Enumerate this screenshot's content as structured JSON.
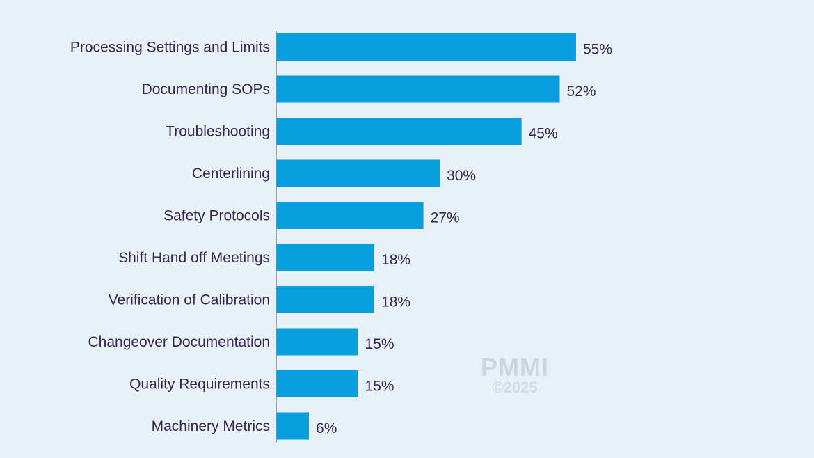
{
  "chart_data": {
    "type": "bar",
    "orientation": "horizontal",
    "categories": [
      "Processing Settings and Limits",
      "Documenting SOPs",
      "Troubleshooting",
      "Centerlining",
      "Safety Protocols",
      "Shift Hand off Meetings",
      "Verification of Calibration",
      "Changeover Documentation",
      "Quality Requirements",
      "Machinery Metrics"
    ],
    "values": [
      55,
      52,
      45,
      30,
      27,
      18,
      18,
      15,
      15,
      6
    ],
    "value_suffix": "%",
    "xlim": [
      0,
      60
    ],
    "grid": false,
    "legend": "none",
    "bar_color": "#079fdd",
    "background_color": "#e6f1f8",
    "text_color": "#3a2550"
  },
  "watermark": {
    "brand": "PMMI",
    "year": "©2025"
  }
}
